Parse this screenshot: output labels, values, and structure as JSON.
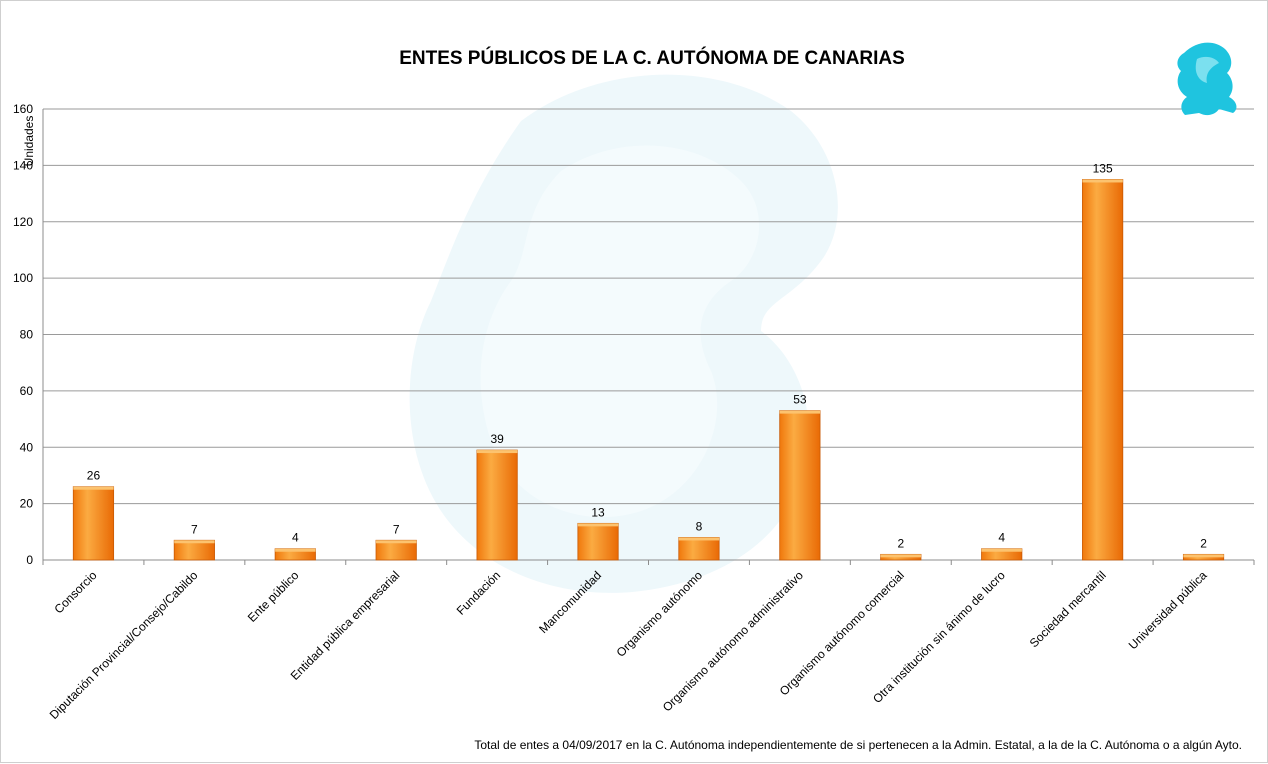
{
  "chart_data": {
    "type": "bar",
    "title": "ENTES PÚBLICOS DE LA C. AUTÓNOMA DE CANARIAS",
    "ylabel": "Unidades",
    "xlabel": "",
    "ylim": [
      0,
      160
    ],
    "yticks": [
      0,
      20,
      40,
      60,
      80,
      100,
      120,
      140,
      160
    ],
    "grid": true,
    "legend": "none",
    "bar_color": "#f7901e",
    "categories": [
      "Consorcio",
      "Diputación Provincial/Consejo/Cabildo",
      "Ente público",
      "Entidad pública empresarial",
      "Fundación",
      "Mancomunidad",
      "Organismo autónomo",
      "Organismo autónomo administrativo",
      "Organismo autónomo comercial",
      "Otra institución sin ánimo de lucro",
      "Sociedad mercantil",
      "Universidad pública"
    ],
    "values": [
      26,
      7,
      4,
      7,
      39,
      13,
      8,
      53,
      2,
      4,
      135,
      2
    ],
    "footnote": "Total de entes  a 04/09/2017 en  la C. Autónoma  independientemente  de  si pertenecen  a la Admin. Estatal, a la de la C. Autónoma  o a algún Ayto."
  },
  "logo": {
    "name": "griffin-logo-icon",
    "color": "#1fc4df"
  },
  "watermark": {
    "name": "griffin-watermark",
    "color": "#eaf7fb"
  }
}
